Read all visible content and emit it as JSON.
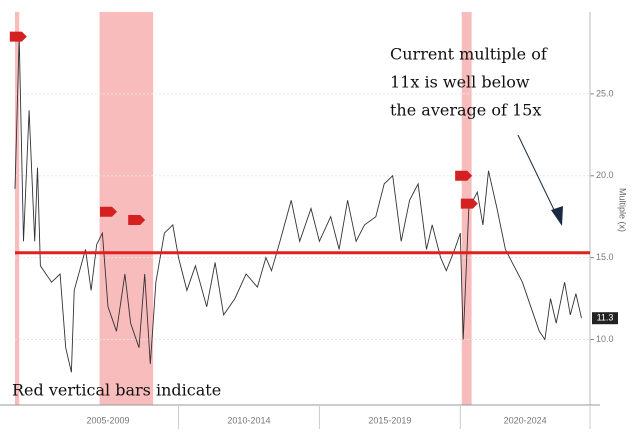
{
  "chart_data": {
    "type": "line",
    "y_axis_label": "Multiple (x)",
    "annotation_lines": [
      "Current multiple of",
      "11x is well below",
      "the average of 15x"
    ],
    "footnote": "Red vertical bars indicate",
    "x": [
      2004.2,
      2004.35,
      2004.5,
      2004.7,
      2004.9,
      2005.0,
      2005.1,
      2005.5,
      2005.8,
      2006.0,
      2006.2,
      2006.3,
      2006.7,
      2006.9,
      2007.1,
      2007.3,
      2007.5,
      2007.8,
      2008.1,
      2008.3,
      2008.6,
      2008.8,
      2009.0,
      2009.2,
      2009.5,
      2009.8,
      2010.0,
      2010.3,
      2010.6,
      2011.0,
      2011.3,
      2011.6,
      2012.0,
      2012.4,
      2012.8,
      2013.1,
      2013.3,
      2013.6,
      2014.0,
      2014.3,
      2014.7,
      2015.0,
      2015.4,
      2015.7,
      2016.0,
      2016.3,
      2016.6,
      2017.0,
      2017.3,
      2017.6,
      2017.9,
      2018.2,
      2018.5,
      2018.8,
      2019.0,
      2019.3,
      2019.5,
      2019.8,
      2020.0,
      2020.1,
      2020.3,
      2020.6,
      2020.8,
      2021.0,
      2021.3,
      2021.6,
      2021.9,
      2022.2,
      2022.5,
      2022.8,
      2023.0,
      2023.2,
      2023.4,
      2023.7,
      2023.9,
      2024.1,
      2024.3
    ],
    "values": [
      19.2,
      28.5,
      16,
      24,
      16,
      20.5,
      14.5,
      13.5,
      14,
      9.5,
      8,
      13,
      15.5,
      13,
      15.8,
      16.5,
      12,
      10.5,
      14,
      11,
      9.5,
      14,
      8.5,
      13.5,
      16.5,
      17,
      15,
      13,
      14.5,
      12,
      14.7,
      11.5,
      12.5,
      14,
      13.2,
      15,
      14.2,
      16,
      18.5,
      16,
      18,
      16,
      17.5,
      15.5,
      18.5,
      16,
      17,
      17.5,
      19.5,
      20,
      16,
      18.5,
      19.5,
      15.5,
      17,
      15,
      14.2,
      15.5,
      16.5,
      10,
      18,
      19,
      17,
      20.3,
      18,
      15.5,
      14.5,
      13.5,
      12,
      10.5,
      10,
      12.5,
      11,
      13.5,
      11.5,
      12.8,
      11.3
    ],
    "color": "#333333",
    "average": 15.3,
    "average_color": "#e0201c",
    "current": {
      "value": 11.3,
      "label": "11.3"
    },
    "shaded_ranges": [
      [
        2004.2,
        2004.35
      ],
      [
        2007.2,
        2009.1
      ],
      [
        2020.05,
        2020.4
      ]
    ],
    "shade_color": "#f7a6a6",
    "markers": [
      {
        "x": 2004.3,
        "y": 28.5
      },
      {
        "x": 2007.5,
        "y": 17.8
      },
      {
        "x": 2008.5,
        "y": 17.3
      },
      {
        "x": 2020.1,
        "y": 20.0
      },
      {
        "x": 2020.3,
        "y": 18.3
      }
    ],
    "x_groups": [
      {
        "label": "2005-2009",
        "start": 2005,
        "end": 2010
      },
      {
        "label": "2010-2014",
        "start": 2010,
        "end": 2015
      },
      {
        "label": "2015-2019",
        "start": 2015,
        "end": 2020
      },
      {
        "label": "2020-2024",
        "start": 2020,
        "end": 2025
      }
    ],
    "xlim": [
      2004.2,
      2024.6
    ],
    "ylim": [
      6,
      30
    ],
    "yticks": [
      {
        "value": 10,
        "label": "10.0"
      },
      {
        "value": 15,
        "label": "15.0"
      },
      {
        "value": 20,
        "label": "20.0"
      },
      {
        "value": 25,
        "label": "25.0"
      }
    ],
    "grid": true
  }
}
